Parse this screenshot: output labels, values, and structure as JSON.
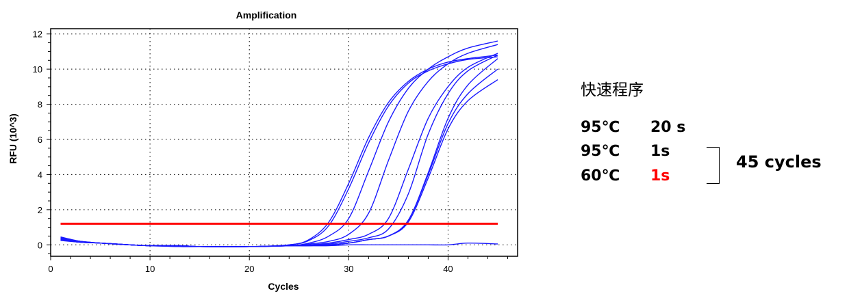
{
  "chart_data": {
    "type": "line",
    "title": "Amplification",
    "xlabel": "Cycles",
    "ylabel": "RFU (10^3)",
    "xlim": [
      0,
      47
    ],
    "ylim": [
      -0.65,
      12.3
    ],
    "xticks": [
      0,
      10,
      20,
      30,
      40
    ],
    "yticks": [
      0,
      2,
      4,
      6,
      8,
      10,
      12
    ],
    "grid": true,
    "series_color": "#1a1aff",
    "threshold": {
      "value": 1.2,
      "x_range": [
        1,
        45
      ],
      "color": "#ff0000"
    },
    "x": [
      1,
      3,
      5,
      8,
      10,
      13,
      15,
      20,
      24,
      26,
      28,
      30,
      32,
      34,
      36,
      38,
      40,
      42,
      45
    ],
    "series": [
      {
        "values": [
          0.45,
          0.2,
          0.1,
          0.0,
          -0.05,
          -0.1,
          -0.1,
          -0.1,
          0.0,
          0.3,
          1.3,
          3.5,
          6.1,
          8.1,
          9.3,
          10.0,
          10.4,
          10.6,
          10.8
        ]
      },
      {
        "values": [
          0.4,
          0.2,
          0.1,
          0.0,
          -0.05,
          -0.1,
          -0.1,
          -0.1,
          0.0,
          0.25,
          1.1,
          3.2,
          5.8,
          7.9,
          9.2,
          9.9,
          10.3,
          10.55,
          10.7
        ]
      },
      {
        "values": [
          0.35,
          0.2,
          0.1,
          0.0,
          -0.05,
          -0.05,
          -0.1,
          -0.1,
          -0.05,
          0.1,
          0.5,
          1.5,
          4.2,
          7.0,
          8.9,
          10.0,
          10.7,
          11.2,
          11.6
        ]
      },
      {
        "values": [
          0.35,
          0.2,
          0.1,
          0.0,
          -0.05,
          -0.05,
          -0.1,
          -0.1,
          -0.05,
          0.05,
          0.2,
          0.6,
          1.8,
          4.8,
          7.6,
          9.3,
          10.3,
          10.9,
          11.4
        ]
      },
      {
        "values": [
          0.3,
          0.15,
          0.1,
          0.0,
          -0.05,
          -0.05,
          -0.1,
          -0.1,
          -0.05,
          0.0,
          0.1,
          0.3,
          0.6,
          1.5,
          4.3,
          7.2,
          9.0,
          10.1,
          10.9
        ]
      },
      {
        "values": [
          0.3,
          0.15,
          0.1,
          0.0,
          -0.05,
          -0.05,
          -0.1,
          -0.1,
          -0.05,
          0.0,
          0.05,
          0.2,
          0.4,
          0.9,
          2.9,
          6.3,
          8.6,
          9.9,
          10.8
        ]
      },
      {
        "values": [
          0.3,
          0.15,
          0.1,
          0.0,
          -0.05,
          -0.05,
          -0.1,
          -0.1,
          -0.05,
          -0.05,
          0.0,
          0.1,
          0.3,
          0.5,
          1.4,
          4.0,
          6.9,
          8.6,
          10.0
        ]
      },
      {
        "values": [
          0.3,
          0.15,
          0.1,
          0.0,
          -0.05,
          -0.05,
          -0.1,
          -0.1,
          -0.05,
          -0.05,
          0.0,
          0.1,
          0.3,
          0.5,
          1.3,
          3.8,
          6.6,
          8.2,
          9.4
        ]
      },
      {
        "values": [
          0.3,
          0.15,
          0.1,
          0.0,
          -0.05,
          -0.05,
          -0.1,
          -0.1,
          -0.05,
          -0.05,
          0.0,
          0.1,
          0.3,
          0.5,
          1.4,
          4.1,
          7.2,
          9.1,
          10.6
        ]
      },
      {
        "values": [
          0.25,
          0.15,
          0.1,
          0.0,
          -0.05,
          -0.05,
          -0.1,
          -0.1,
          -0.05,
          -0.05,
          -0.05,
          0.0,
          0.0,
          0.0,
          0.0,
          0.0,
          0.0,
          0.1,
          0.05
        ]
      }
    ]
  },
  "protocol": {
    "title": "快速程序",
    "steps": [
      {
        "temp": "95℃",
        "time": "20 s",
        "time_color": "#000000"
      },
      {
        "temp": "95℃",
        "time": "1s",
        "time_color": "#000000"
      },
      {
        "temp": "60℃",
        "time": "1s",
        "time_color": "#ff0000"
      }
    ],
    "cycles_label": "45 cycles"
  }
}
